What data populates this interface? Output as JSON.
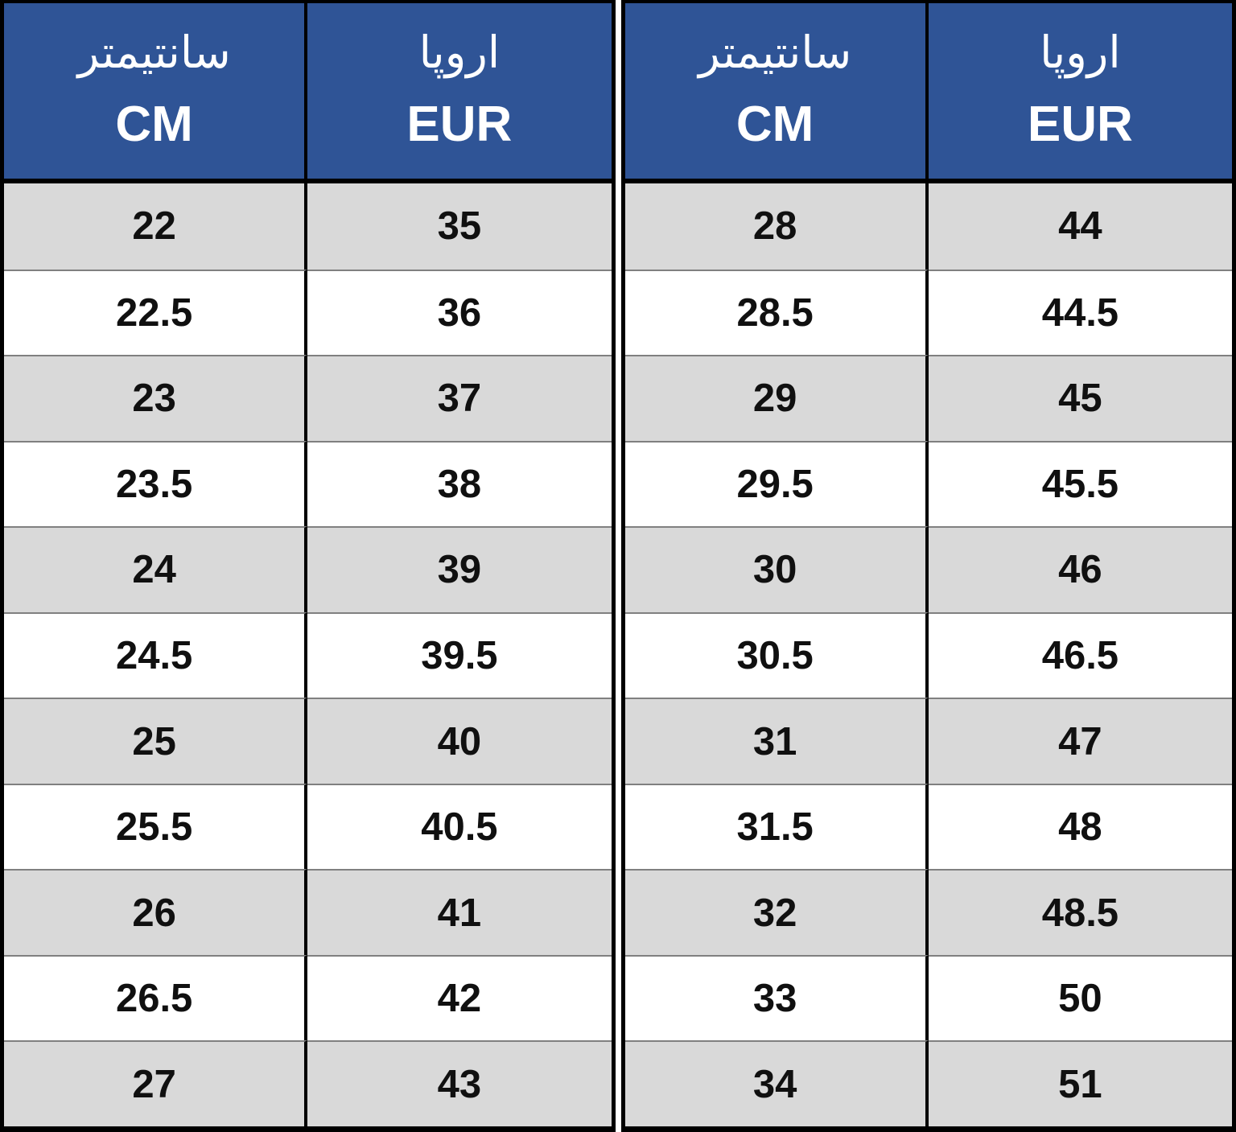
{
  "colors": {
    "header_bg": "#2F5496",
    "header_text": "#FFFFFF",
    "row_alt_bg": "#D9D9D9",
    "row_bg": "#FFFFFF",
    "row_divider": "#808080",
    "border": "#000000",
    "number_text": "#101010"
  },
  "tables": [
    {
      "header": {
        "cm": {
          "fa": "سانتیمتر",
          "en": "CM"
        },
        "eur": {
          "fa": "اروپا",
          "en": "EUR"
        }
      },
      "rows": [
        {
          "cm": "22",
          "eur": "35"
        },
        {
          "cm": "22.5",
          "eur": "36"
        },
        {
          "cm": "23",
          "eur": "37"
        },
        {
          "cm": "23.5",
          "eur": "38"
        },
        {
          "cm": "24",
          "eur": "39"
        },
        {
          "cm": "24.5",
          "eur": "39.5"
        },
        {
          "cm": "25",
          "eur": "40"
        },
        {
          "cm": "25.5",
          "eur": "40.5"
        },
        {
          "cm": "26",
          "eur": "41"
        },
        {
          "cm": "26.5",
          "eur": "42"
        },
        {
          "cm": "27",
          "eur": "43"
        }
      ]
    },
    {
      "header": {
        "cm": {
          "fa": "سانتیمتر",
          "en": "CM"
        },
        "eur": {
          "fa": "اروپا",
          "en": "EUR"
        }
      },
      "rows": [
        {
          "cm": "28",
          "eur": "44"
        },
        {
          "cm": "28.5",
          "eur": "44.5"
        },
        {
          "cm": "29",
          "eur": "45"
        },
        {
          "cm": "29.5",
          "eur": "45.5"
        },
        {
          "cm": "30",
          "eur": "46"
        },
        {
          "cm": "30.5",
          "eur": "46.5"
        },
        {
          "cm": "31",
          "eur": "47"
        },
        {
          "cm": "31.5",
          "eur": "48"
        },
        {
          "cm": "32",
          "eur": "48.5"
        },
        {
          "cm": "33",
          "eur": "50"
        },
        {
          "cm": "34",
          "eur": "51"
        }
      ]
    }
  ],
  "chart_data": {
    "type": "table",
    "title": "CM to EUR shoe size conversion table (سانتیمتر / اروپا)",
    "columns": [
      "سانتیمتر CM",
      "اروپا EUR"
    ],
    "rows": [
      [
        22,
        35
      ],
      [
        22.5,
        36
      ],
      [
        23,
        37
      ],
      [
        23.5,
        38
      ],
      [
        24,
        39
      ],
      [
        24.5,
        39.5
      ],
      [
        25,
        40
      ],
      [
        25.5,
        40.5
      ],
      [
        26,
        41
      ],
      [
        26.5,
        42
      ],
      [
        27,
        43
      ],
      [
        28,
        44
      ],
      [
        28.5,
        44.5
      ],
      [
        29,
        45
      ],
      [
        29.5,
        45.5
      ],
      [
        30,
        46
      ],
      [
        30.5,
        46.5
      ],
      [
        31,
        47
      ],
      [
        31.5,
        48
      ],
      [
        32,
        48.5
      ],
      [
        33,
        50
      ],
      [
        34,
        51
      ]
    ],
    "layout": {
      "split": "two side-by-side tables, 11 rows each",
      "row_striping": "grey/white alternating starting grey",
      "header_style": "blue background, white bilingual labels"
    }
  }
}
